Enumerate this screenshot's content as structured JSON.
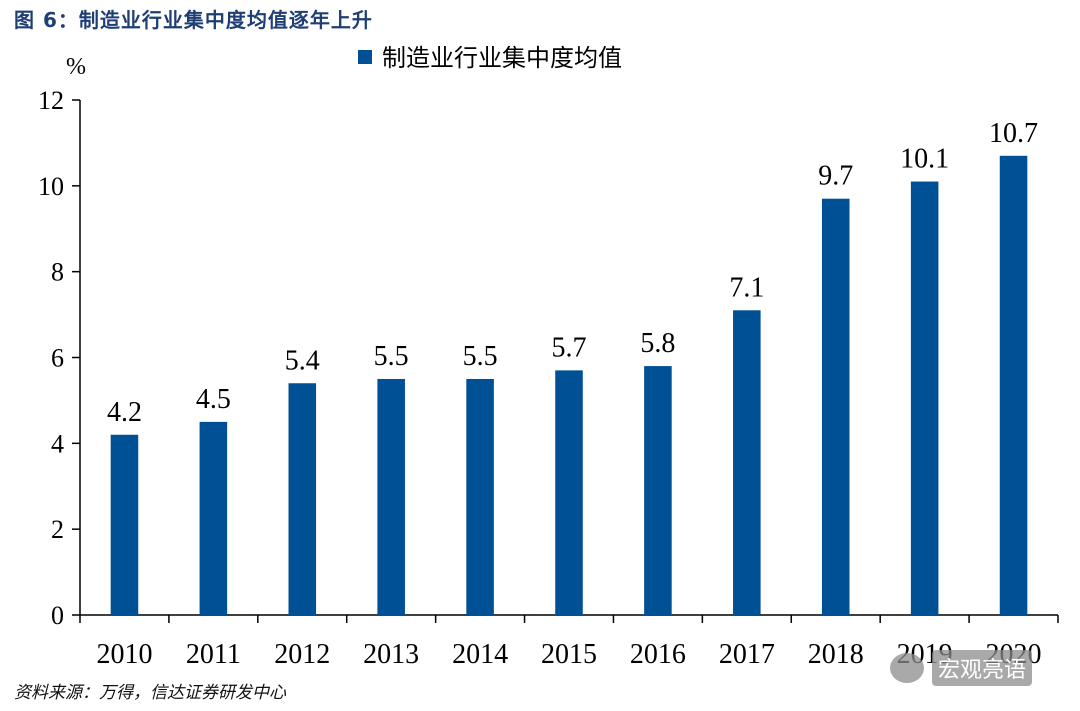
{
  "figure_title": "图 6：制造业行业集中度均值逐年上升",
  "source": "资料来源：万得，信达证券研发中心",
  "watermark_text": "宏观亮语",
  "colors": {
    "bar": "#005096",
    "title": "#1f3f74"
  },
  "chart_data": {
    "type": "bar",
    "categories": [
      "2010",
      "2011",
      "2012",
      "2013",
      "2014",
      "2015",
      "2016",
      "2017",
      "2018",
      "2019",
      "2020"
    ],
    "series": [
      {
        "name": "制造业行业集中度均值",
        "values": [
          4.2,
          4.5,
          5.4,
          5.5,
          5.5,
          5.7,
          5.8,
          7.1,
          9.7,
          10.1,
          10.7
        ]
      }
    ],
    "data_labels": [
      "4.2",
      "4.5",
      "5.4",
      "5.5",
      "5.5",
      "5.7",
      "5.8",
      "7.1",
      "9.7",
      "10.1",
      "10.7"
    ],
    "ylabel": "%",
    "ylim": [
      0,
      12
    ],
    "yticks": [
      0,
      2,
      4,
      6,
      8,
      10,
      12
    ],
    "grid": false,
    "legend_position": "top-center"
  }
}
